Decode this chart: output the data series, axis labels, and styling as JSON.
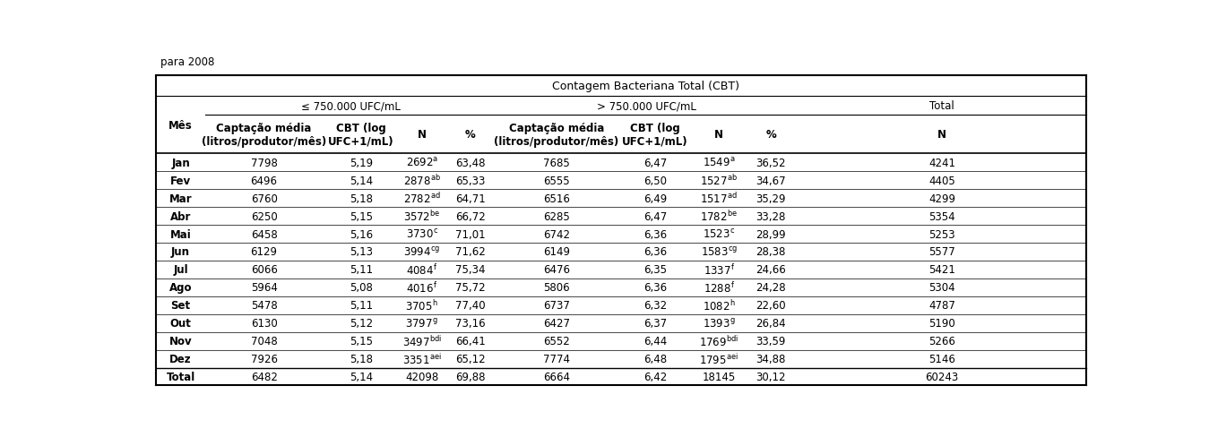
{
  "title_top": "para 2008",
  "title_cbt": "Contagem Bacteriana Total (CBT)",
  "header_le": "≤ 750.000 UFC/mL",
  "header_gt": "> 750.000 UFC/mL",
  "header_total": "Total",
  "col_mes": "Mês",
  "col_headers_le": [
    "Captação média\n(litros/produtor/mês)",
    "CBT (log\nUFC+1/mL)",
    "N",
    "%"
  ],
  "col_headers_gt": [
    "Captação média\n(litros/produtor/mês)",
    "CBT (log\nUFC+1/mL)",
    "N",
    "%"
  ],
  "col_header_total": "N",
  "rows": [
    [
      "Jan",
      "7798",
      "5,19",
      "2692",
      "a",
      "63,48",
      "7685",
      "6,47",
      "1549",
      "a",
      "36,52",
      "4241"
    ],
    [
      "Fev",
      "6496",
      "5,14",
      "2878",
      "ab",
      "65,33",
      "6555",
      "6,50",
      "1527",
      "ab",
      "34,67",
      "4405"
    ],
    [
      "Mar",
      "6760",
      "5,18",
      "2782",
      "ad",
      "64,71",
      "6516",
      "6,49",
      "1517",
      "ad",
      "35,29",
      "4299"
    ],
    [
      "Abr",
      "6250",
      "5,15",
      "3572",
      "be",
      "66,72",
      "6285",
      "6,47",
      "1782",
      "be",
      "33,28",
      "5354"
    ],
    [
      "Mai",
      "6458",
      "5,16",
      "3730",
      "c",
      "71,01",
      "6742",
      "6,36",
      "1523",
      "c",
      "28,99",
      "5253"
    ],
    [
      "Jun",
      "6129",
      "5,13",
      "3994",
      "cg",
      "71,62",
      "6149",
      "6,36",
      "1583",
      "cg",
      "28,38",
      "5577"
    ],
    [
      "Jul",
      "6066",
      "5,11",
      "4084",
      "f",
      "75,34",
      "6476",
      "6,35",
      "1337",
      "f",
      "24,66",
      "5421"
    ],
    [
      "Ago",
      "5964",
      "5,08",
      "4016",
      "f",
      "75,72",
      "5806",
      "6,36",
      "1288",
      "f",
      "24,28",
      "5304"
    ],
    [
      "Set",
      "5478",
      "5,11",
      "3705",
      "h",
      "77,40",
      "6737",
      "6,32",
      "1082",
      "h",
      "22,60",
      "4787"
    ],
    [
      "Out",
      "6130",
      "5,12",
      "3797",
      "g",
      "73,16",
      "6427",
      "6,37",
      "1393",
      "g",
      "26,84",
      "5190"
    ],
    [
      "Nov",
      "7048",
      "5,15",
      "3497",
      "bdi",
      "66,41",
      "6552",
      "6,44",
      "1769",
      "bdi",
      "33,59",
      "5266"
    ],
    [
      "Dez",
      "7926",
      "5,18",
      "3351",
      "aei",
      "65,12",
      "7774",
      "6,48",
      "1795",
      "aei",
      "34,88",
      "5146"
    ],
    [
      "Total",
      "6482",
      "5,14",
      "42098",
      "",
      "69,88",
      "6664",
      "6,42",
      "18145",
      "",
      "30,12",
      "60243"
    ]
  ],
  "background_color": "#ffffff",
  "font_size": 8.5,
  "header_font_size": 8.5,
  "title_font_size": 9.0
}
